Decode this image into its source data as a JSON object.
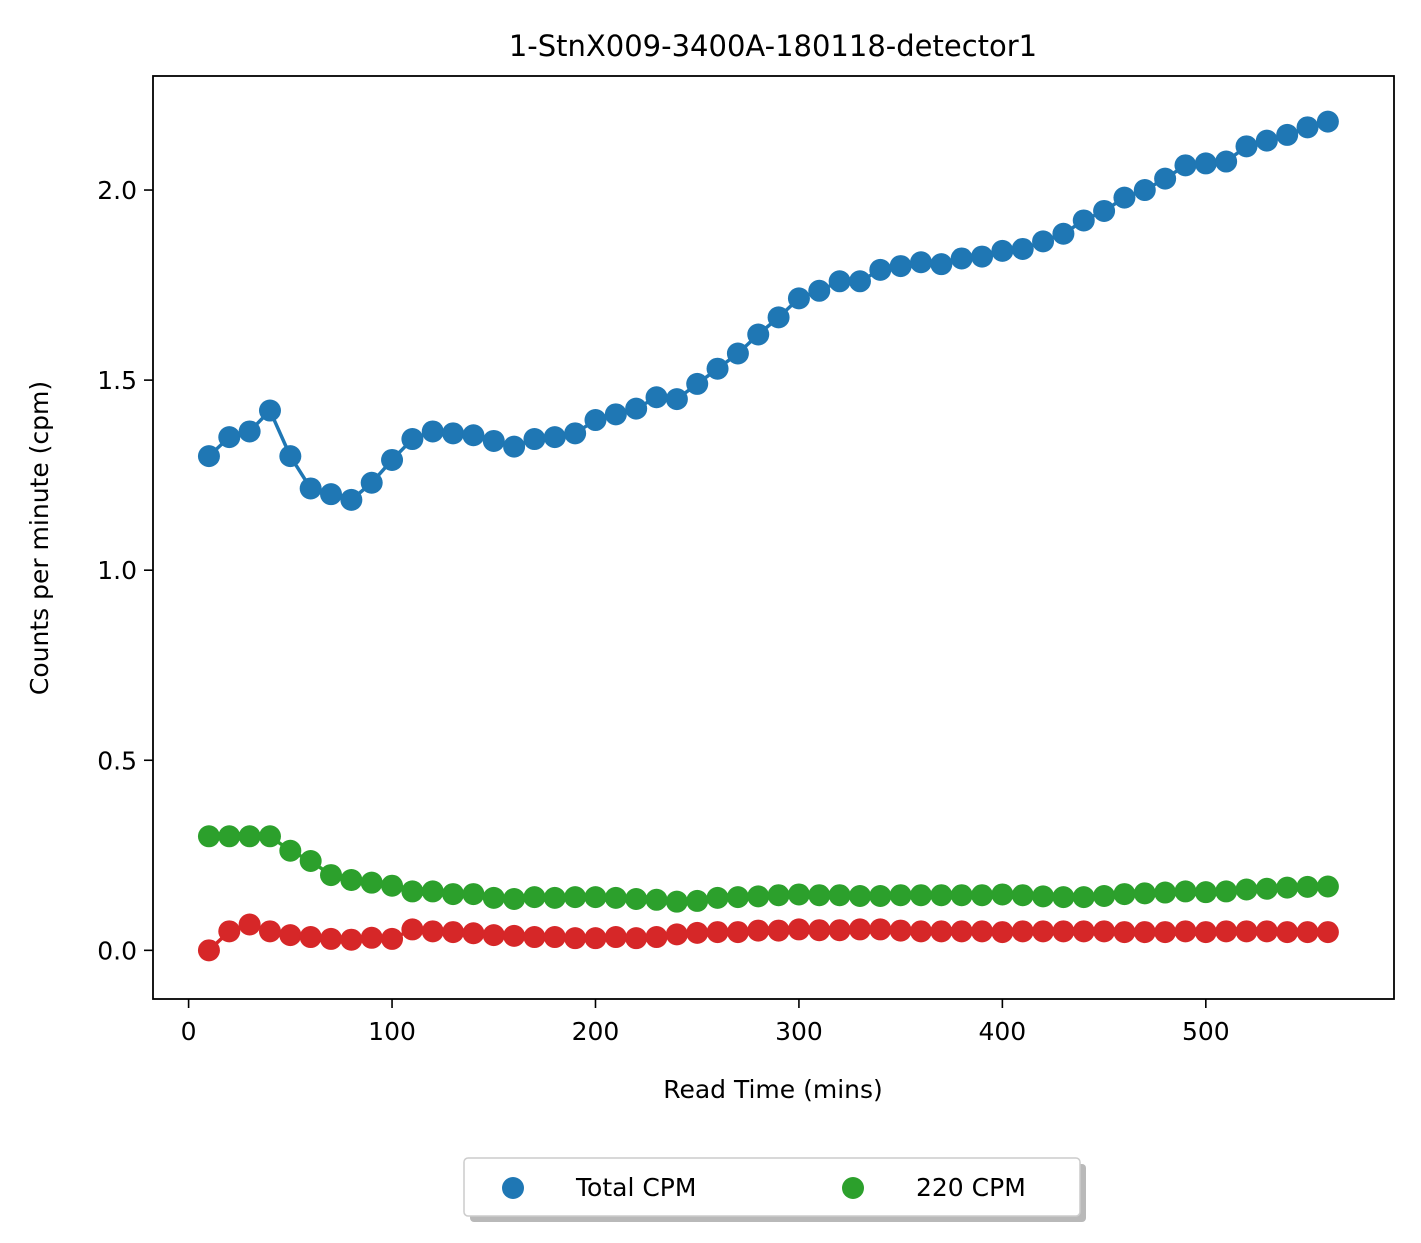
{
  "chart_data": {
    "type": "line",
    "title": "1-StnX009-3400A-180118-detector1",
    "xlabel": "Read Time (mins)",
    "ylabel": "Counts per minute (cpm)",
    "xlim": [
      -17.5,
      592.5
    ],
    "ylim": [
      -0.128,
      2.3
    ],
    "xticks": [
      0,
      100,
      200,
      300,
      400,
      500
    ],
    "xtick_labels": [
      "0",
      "100",
      "200",
      "300",
      "400",
      "500"
    ],
    "yticks": [
      0.0,
      0.5,
      1.0,
      1.5,
      2.0
    ],
    "ytick_labels": [
      "0.0",
      "0.5",
      "1.0",
      "1.5",
      "2.0"
    ],
    "grid": false,
    "legend_position": "bottom-center",
    "x": [
      10,
      20,
      30,
      40,
      50,
      60,
      70,
      80,
      90,
      100,
      110,
      120,
      130,
      140,
      150,
      160,
      170,
      180,
      190,
      200,
      210,
      220,
      230,
      240,
      250,
      260,
      270,
      280,
      290,
      300,
      310,
      320,
      330,
      340,
      350,
      360,
      370,
      380,
      390,
      400,
      410,
      420,
      430,
      440,
      450,
      460,
      470,
      480,
      490,
      500,
      510,
      520,
      530,
      540,
      550,
      560
    ],
    "series": [
      {
        "name": "Total CPM",
        "color": "#1f77b4",
        "in_legend": true,
        "values": [
          1.3,
          1.35,
          1.365,
          1.42,
          1.3,
          1.215,
          1.2,
          1.185,
          1.23,
          1.29,
          1.345,
          1.365,
          1.36,
          1.355,
          1.34,
          1.325,
          1.345,
          1.35,
          1.36,
          1.395,
          1.41,
          1.425,
          1.455,
          1.45,
          1.49,
          1.53,
          1.57,
          1.62,
          1.665,
          1.715,
          1.735,
          1.76,
          1.76,
          1.79,
          1.8,
          1.81,
          1.805,
          1.82,
          1.825,
          1.84,
          1.845,
          1.865,
          1.885,
          1.92,
          1.945,
          1.98,
          2.0,
          2.03,
          2.065,
          2.07,
          2.075,
          2.115,
          2.13,
          2.145,
          2.165,
          2.18
        ]
      },
      {
        "name": "220 CPM",
        "color": "#2ca02c",
        "in_legend": true,
        "values": [
          0.3,
          0.3,
          0.3,
          0.3,
          0.262,
          0.235,
          0.198,
          0.185,
          0.178,
          0.17,
          0.155,
          0.155,
          0.148,
          0.148,
          0.138,
          0.135,
          0.14,
          0.138,
          0.14,
          0.14,
          0.138,
          0.135,
          0.133,
          0.128,
          0.13,
          0.138,
          0.14,
          0.142,
          0.145,
          0.147,
          0.145,
          0.145,
          0.143,
          0.143,
          0.145,
          0.145,
          0.145,
          0.145,
          0.145,
          0.147,
          0.145,
          0.142,
          0.14,
          0.14,
          0.143,
          0.148,
          0.15,
          0.152,
          0.155,
          0.153,
          0.155,
          0.16,
          0.162,
          0.165,
          0.167,
          0.168
        ]
      },
      {
        "name": "",
        "color": "#d62728",
        "in_legend": false,
        "values": [
          0.0,
          0.05,
          0.068,
          0.05,
          0.04,
          0.035,
          0.03,
          0.028,
          0.033,
          0.03,
          0.055,
          0.05,
          0.048,
          0.045,
          0.04,
          0.038,
          0.035,
          0.035,
          0.032,
          0.032,
          0.035,
          0.032,
          0.035,
          0.042,
          0.046,
          0.048,
          0.048,
          0.052,
          0.052,
          0.055,
          0.053,
          0.053,
          0.055,
          0.055,
          0.052,
          0.05,
          0.05,
          0.05,
          0.05,
          0.048,
          0.05,
          0.05,
          0.05,
          0.05,
          0.05,
          0.048,
          0.048,
          0.048,
          0.05,
          0.048,
          0.05,
          0.05,
          0.05,
          0.048,
          0.048,
          0.048
        ]
      }
    ]
  }
}
